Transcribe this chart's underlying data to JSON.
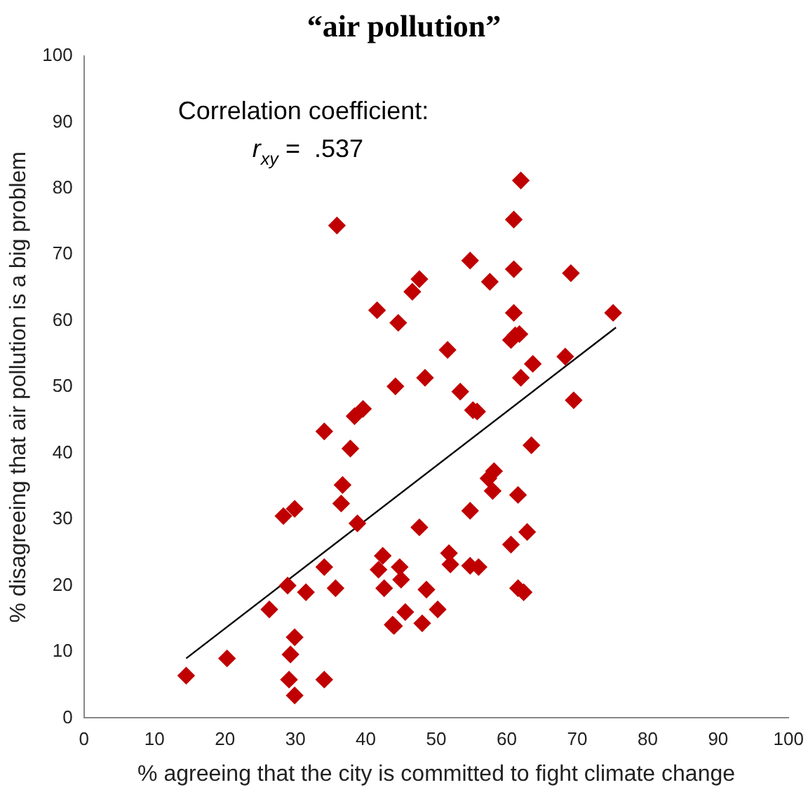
{
  "chart_data": {
    "type": "scatter",
    "title": "“air pollution”",
    "xlabel": "% agreeing that the city is committed to fight climate change",
    "ylabel": "% disagreeing that air pollution is a big problem",
    "annotations": [
      "Correlation coefficient:",
      "r$_{xy}$ =  .537"
    ],
    "xlim": [
      0,
      100
    ],
    "xticks": [
      0,
      10,
      20,
      30,
      40,
      50,
      60,
      70,
      80,
      90,
      100
    ],
    "ylim": [
      0,
      100
    ],
    "yticks": [
      0,
      10,
      20,
      30,
      40,
      50,
      60,
      70,
      80,
      90,
      100
    ],
    "grid": false,
    "legend": false,
    "marker": "diamond",
    "series": [
      {
        "color": "#c00000",
        "x": [
          14.5,
          20.3,
          26.3,
          28.9,
          31.5,
          29.9,
          29.3,
          29.1,
          29.9,
          34.1,
          34.1,
          35.7,
          28.3,
          29.9,
          38.8,
          36.5,
          36.7,
          37.8,
          34.1,
          38.4,
          39.6,
          35.9,
          41.6,
          44.2,
          42.4,
          41.8,
          42.6,
          43.8,
          44.6,
          44.8,
          45.0,
          45.6,
          44.0,
          48.6,
          50.2,
          48.0,
          62.0,
          61.0,
          54.8,
          61.0,
          69.1,
          47.6,
          46.6,
          57.6,
          61.0,
          75.1,
          61.2,
          61.8,
          60.6,
          51.6,
          68.3,
          63.7,
          62.0,
          48.4,
          53.4,
          55.2,
          55.8,
          69.5,
          63.5,
          58.2,
          57.4,
          58.0,
          61.6,
          54.8,
          47.6,
          62.9,
          60.6,
          51.8,
          52.0,
          54.8,
          56.0,
          61.6,
          62.4
        ],
        "values": [
          6.4,
          9.0,
          16.4,
          20.0,
          19.0,
          12.2,
          9.6,
          5.8,
          3.4,
          5.8,
          22.8,
          19.6,
          30.5,
          31.6,
          29.4,
          32.4,
          35.2,
          40.7,
          43.3,
          45.6,
          46.7,
          74.4,
          61.6,
          50.1,
          24.5,
          22.4,
          19.6,
          14.1,
          59.7,
          22.8,
          20.9,
          16.0,
          13.9,
          19.4,
          16.4,
          14.3,
          81.2,
          75.3,
          69.1,
          67.8,
          67.2,
          66.3,
          64.4,
          65.9,
          61.2,
          61.2,
          57.8,
          58.0,
          57.1,
          55.6,
          54.6,
          53.5,
          51.4,
          51.4,
          49.3,
          46.5,
          46.3,
          48.0,
          41.2,
          37.3,
          36.2,
          34.3,
          33.7,
          31.3,
          28.8,
          28.1,
          26.2,
          24.9,
          23.2,
          23.0,
          22.8,
          19.6,
          19.0
        ]
      },
      {
        "type": "line",
        "color": "#000000",
        "marker": "none",
        "x": [
          14.5,
          75.5
        ],
        "values": [
          9,
          59
        ]
      }
    ]
  }
}
